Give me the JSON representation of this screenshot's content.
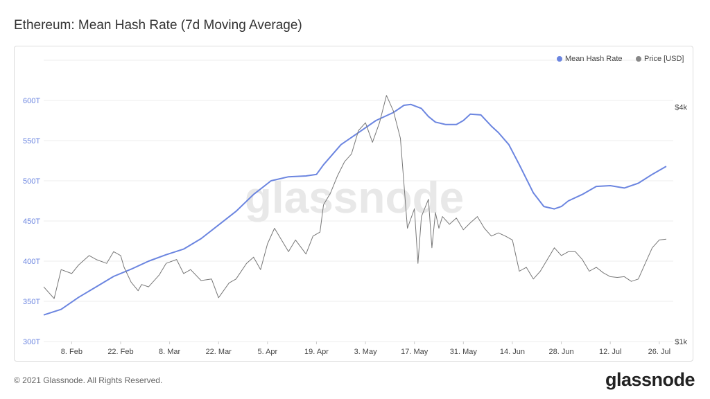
{
  "page": {
    "title": "Ethereum: Mean Hash Rate (7d Moving Average)",
    "footer": "© 2021 Glassnode. All Rights Reserved.",
    "brand": "glassnode",
    "watermark": "glassnode"
  },
  "colors": {
    "hash": "#6b85e0",
    "price": "#777777",
    "axis_left": "#6b85e0",
    "grid": "#ececec"
  },
  "chart_data": {
    "type": "line",
    "title": "Ethereum: Mean Hash Rate (7d Moving Average)",
    "x_labels": [
      "8. Feb",
      "22. Feb",
      "8. Mar",
      "22. Mar",
      "5. Apr",
      "19. Apr",
      "3. May",
      "17. May",
      "31. May",
      "14. Jun",
      "28. Jun",
      "12. Jul",
      "26. Jul"
    ],
    "x_range": [
      0,
      180
    ],
    "x_label_positions": [
      8,
      22,
      36,
      50,
      64,
      78,
      92,
      106,
      120,
      134,
      148,
      162,
      176
    ],
    "y_left": {
      "label": "Mean Hash Rate",
      "ticks": [
        "300T",
        "350T",
        "400T",
        "450T",
        "500T",
        "550T",
        "600T"
      ],
      "tick_values": [
        300,
        350,
        400,
        450,
        500,
        550,
        600
      ],
      "range": [
        300,
        650
      ]
    },
    "y_right": {
      "label": "Price [USD]",
      "ticks": [
        "$1k",
        "$4k"
      ],
      "tick_values": [
        1000,
        4000
      ],
      "range": [
        1000,
        4600
      ]
    },
    "legend": [
      {
        "name": "Mean Hash Rate",
        "color": "#6b85e0"
      },
      {
        "name": "Price [USD]",
        "color": "#888888"
      }
    ],
    "series": [
      {
        "name": "Mean Hash Rate",
        "axis": "left",
        "x": [
          0,
          5,
          10,
          15,
          20,
          25,
          30,
          35,
          40,
          45,
          50,
          55,
          60,
          65,
          70,
          75,
          78,
          80,
          85,
          90,
          95,
          100,
          103,
          105,
          108,
          110,
          112,
          115,
          118,
          120,
          122,
          125,
          128,
          130,
          133,
          136,
          140,
          143,
          146,
          148,
          150,
          154,
          158,
          162,
          166,
          170,
          174,
          178
        ],
        "values": [
          333,
          340,
          355,
          368,
          381,
          390,
          400,
          408,
          415,
          428,
          445,
          462,
          483,
          500,
          505,
          506,
          508,
          520,
          545,
          560,
          575,
          585,
          594,
          595,
          590,
          580,
          573,
          570,
          570,
          575,
          583,
          582,
          568,
          560,
          545,
          520,
          485,
          468,
          465,
          468,
          475,
          483,
          493,
          494,
          491,
          497,
          508,
          518
        ]
      },
      {
        "name": "Price [USD]",
        "axis": "right",
        "x": [
          0,
          3,
          5,
          8,
          10,
          13,
          15,
          18,
          20,
          22,
          23,
          25,
          27,
          28,
          30,
          33,
          35,
          38,
          40,
          42,
          45,
          48,
          50,
          53,
          55,
          58,
          60,
          62,
          64,
          66,
          68,
          70,
          72,
          75,
          77,
          79,
          80,
          82,
          84,
          86,
          88,
          90,
          92,
          94,
          96,
          98,
          100,
          102,
          104,
          106,
          107,
          108,
          110,
          111,
          112,
          113,
          114,
          116,
          118,
          120,
          122,
          124,
          126,
          128,
          130,
          132,
          134,
          136,
          138,
          140,
          142,
          144,
          146,
          148,
          150,
          152,
          154,
          156,
          158,
          160,
          162,
          164,
          166,
          168,
          170,
          172,
          174,
          176,
          178
        ],
        "values": [
          1700,
          1550,
          1920,
          1870,
          1980,
          2100,
          2050,
          2000,
          2150,
          2100,
          1950,
          1760,
          1650,
          1730,
          1700,
          1850,
          2000,
          2050,
          1870,
          1920,
          1780,
          1800,
          1560,
          1750,
          1800,
          2000,
          2080,
          1920,
          2250,
          2450,
          2300,
          2150,
          2300,
          2120,
          2350,
          2400,
          2750,
          2900,
          3120,
          3300,
          3400,
          3700,
          3800,
          3550,
          3800,
          4150,
          3950,
          3600,
          2450,
          2700,
          2000,
          2600,
          2820,
          2200,
          2650,
          2450,
          2600,
          2500,
          2580,
          2430,
          2520,
          2600,
          2450,
          2350,
          2390,
          2350,
          2300,
          1900,
          1950,
          1800,
          1900,
          2050,
          2200,
          2100,
          2150,
          2150,
          2050,
          1900,
          1950,
          1880,
          1830,
          1820,
          1830,
          1770,
          1800,
          2000,
          2200,
          2300,
          2310
        ]
      }
    ]
  }
}
